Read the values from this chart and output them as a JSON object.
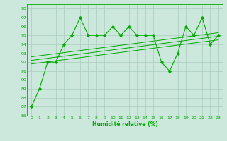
{
  "xlabel": "Humidité relative (%)",
  "background_color": "#cce8dc",
  "grid_color": "#aaccbb",
  "line_color": "#00aa00",
  "xlim": [
    -0.5,
    23.5
  ],
  "ylim": [
    86,
    98.5
  ],
  "xticks": [
    0,
    1,
    2,
    3,
    4,
    5,
    6,
    7,
    8,
    9,
    10,
    11,
    12,
    13,
    14,
    15,
    16,
    17,
    18,
    19,
    20,
    21,
    22,
    23
  ],
  "yticks": [
    86,
    87,
    88,
    89,
    90,
    91,
    92,
    93,
    94,
    95,
    96,
    97,
    98
  ],
  "series1": [
    87,
    89,
    92,
    92,
    94,
    95,
    97,
    95,
    95,
    95,
    96,
    95,
    96,
    95,
    95,
    95,
    92,
    91,
    93,
    96,
    95,
    97,
    94,
    95
  ],
  "trend_lines": [
    {
      "x": [
        0,
        23
      ],
      "y": [
        91.8,
        94.5
      ]
    },
    {
      "x": [
        0,
        23
      ],
      "y": [
        92.2,
        94.9
      ]
    },
    {
      "x": [
        0,
        23
      ],
      "y": [
        92.6,
        95.3
      ]
    }
  ]
}
